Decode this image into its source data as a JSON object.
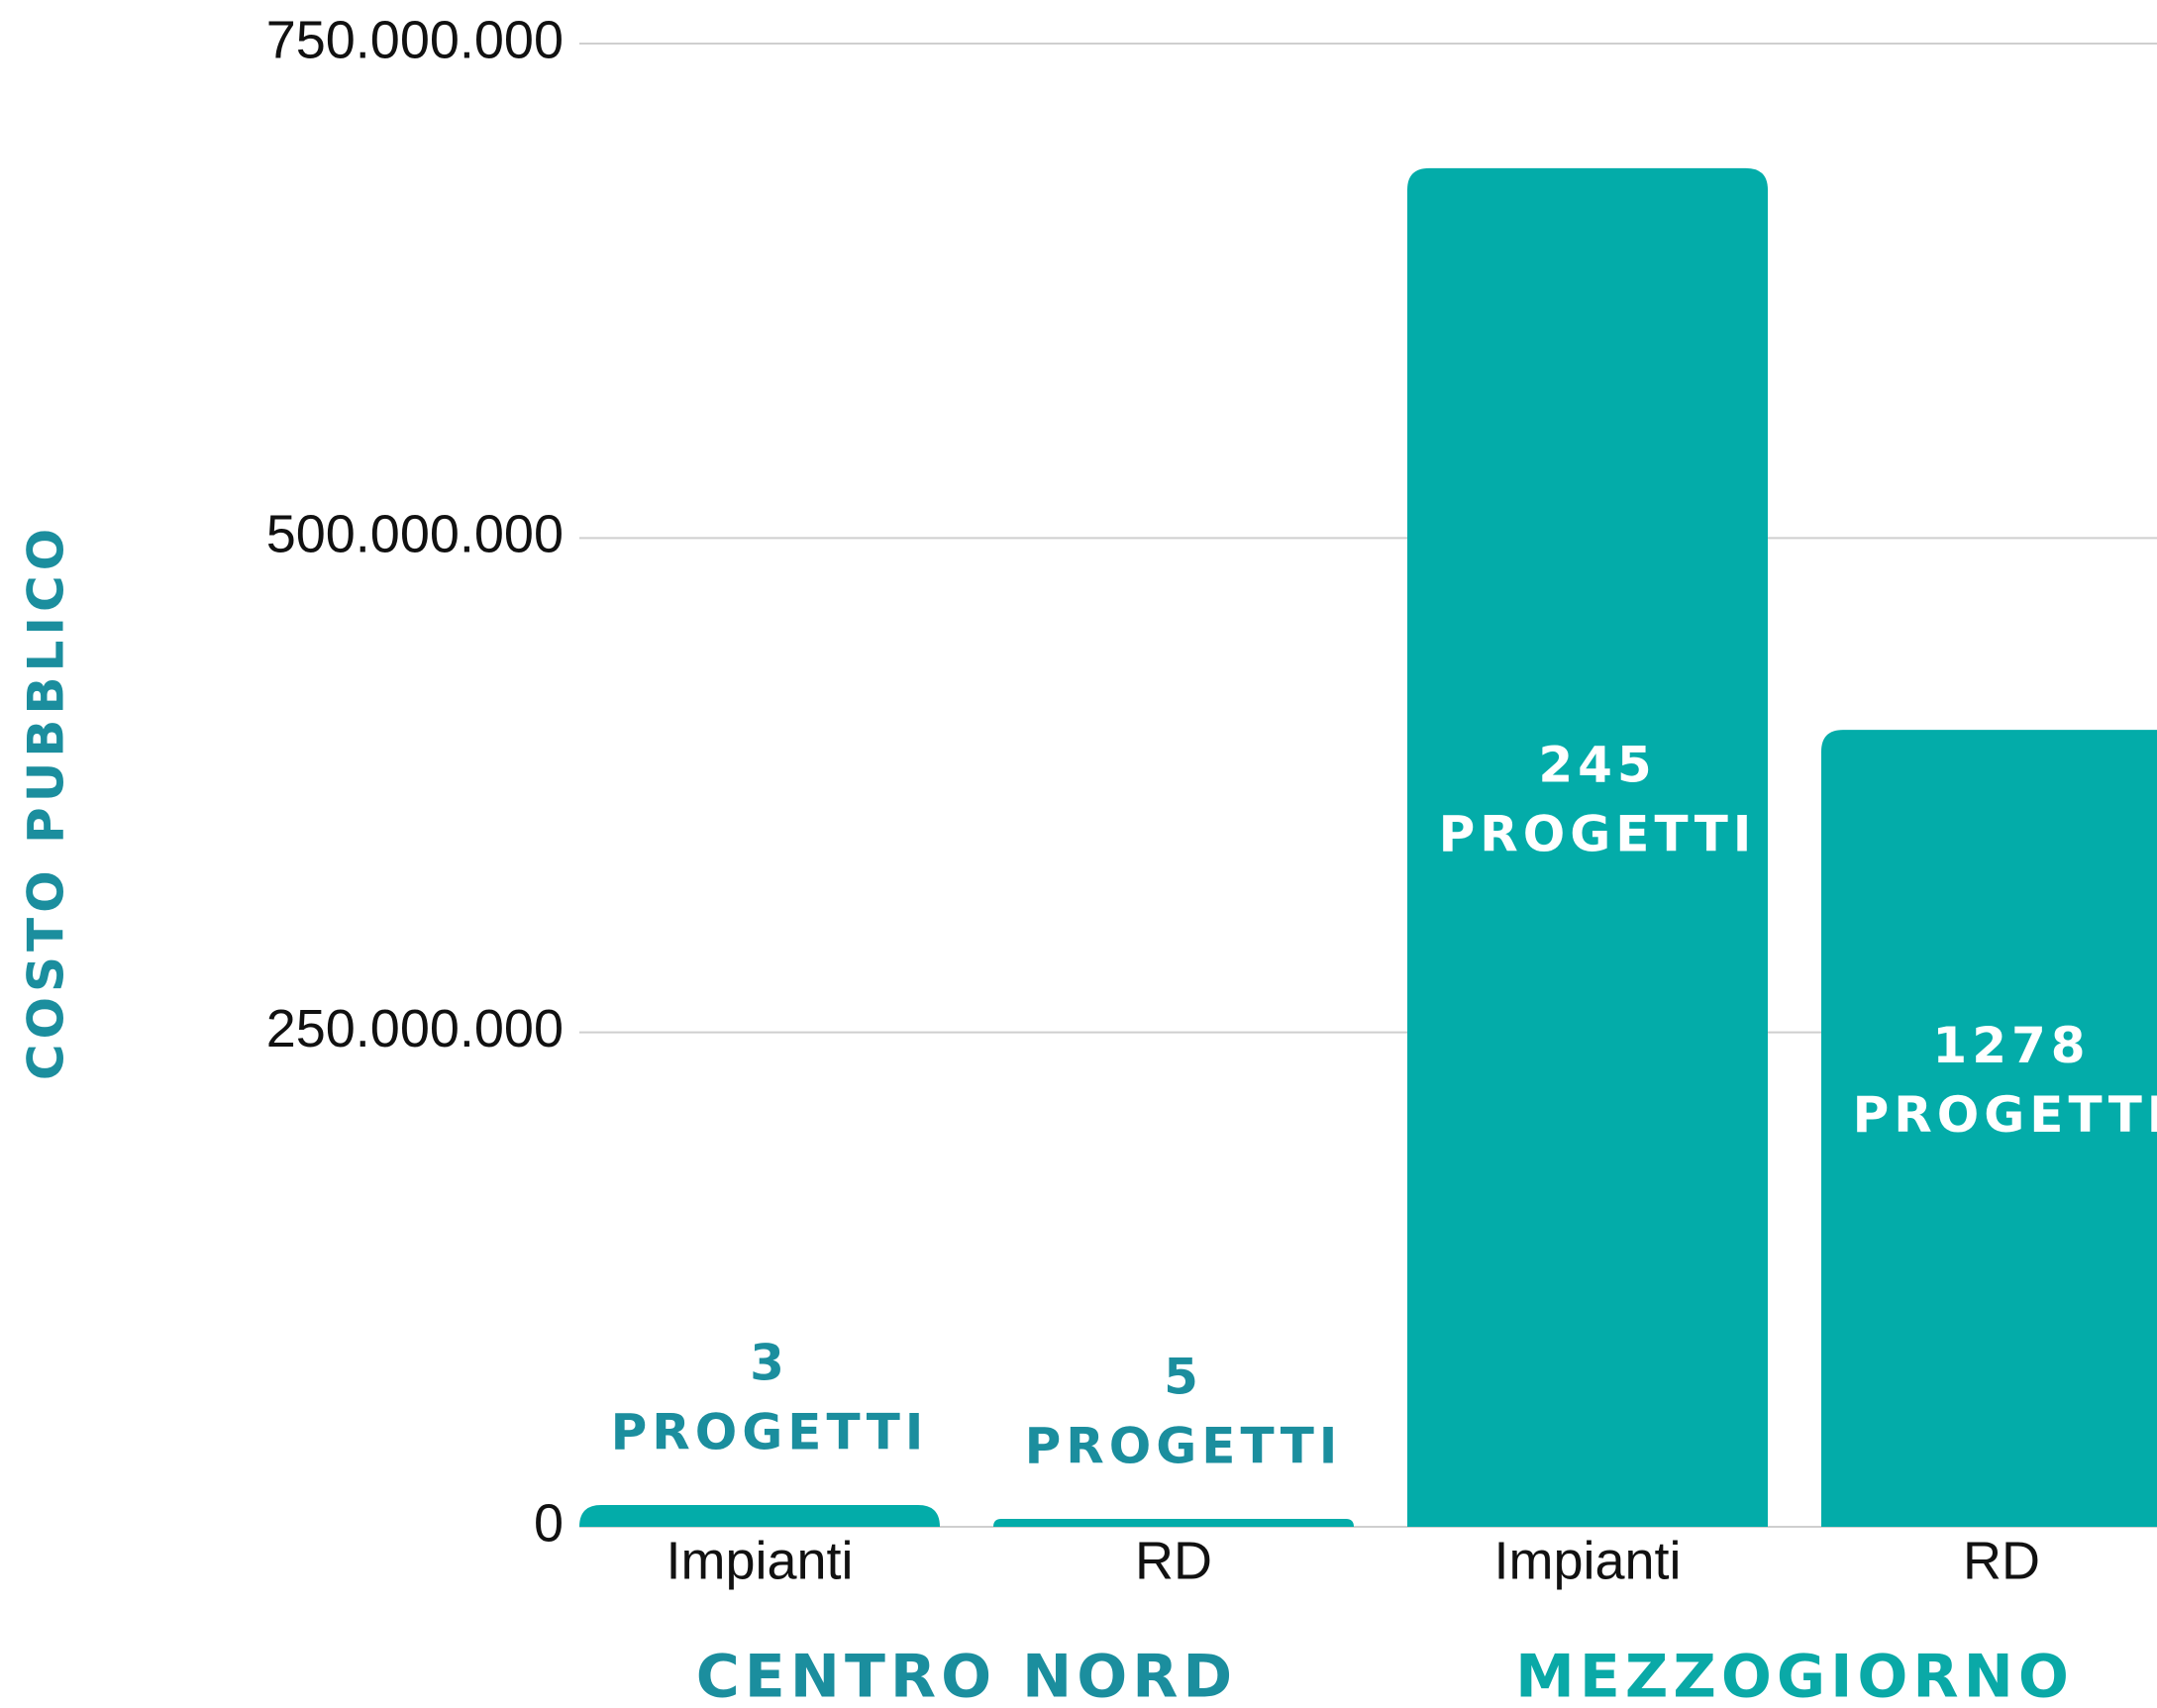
{
  "chart_data": {
    "type": "bar",
    "y_axis_title": "COSTO PUBBLICO",
    "categories": [
      "Impianti",
      "RD",
      "Impianti",
      "RD"
    ],
    "groups": [
      "CENTRO NORD",
      "MEZZOGIORNO"
    ],
    "values": [
      11000000,
      4000000,
      687000000,
      403000000
    ],
    "bar_labels": [
      [
        "3",
        "PROGETTI"
      ],
      [
        "5",
        "PROGETTI"
      ],
      [
        "245",
        "PROGETTI"
      ],
      [
        "1278",
        "PROGETTI"
      ]
    ],
    "color": "#03aca9",
    "ylim": [
      0,
      750000000
    ],
    "yticks": [
      0,
      {
        "value": 250000000,
        "label": "250.000.000"
      },
      {
        "value": 500000000,
        "label": "500.000.000"
      },
      {
        "value": 750000000,
        "label": "750.000.000"
      }
    ],
    "grid": true
  }
}
